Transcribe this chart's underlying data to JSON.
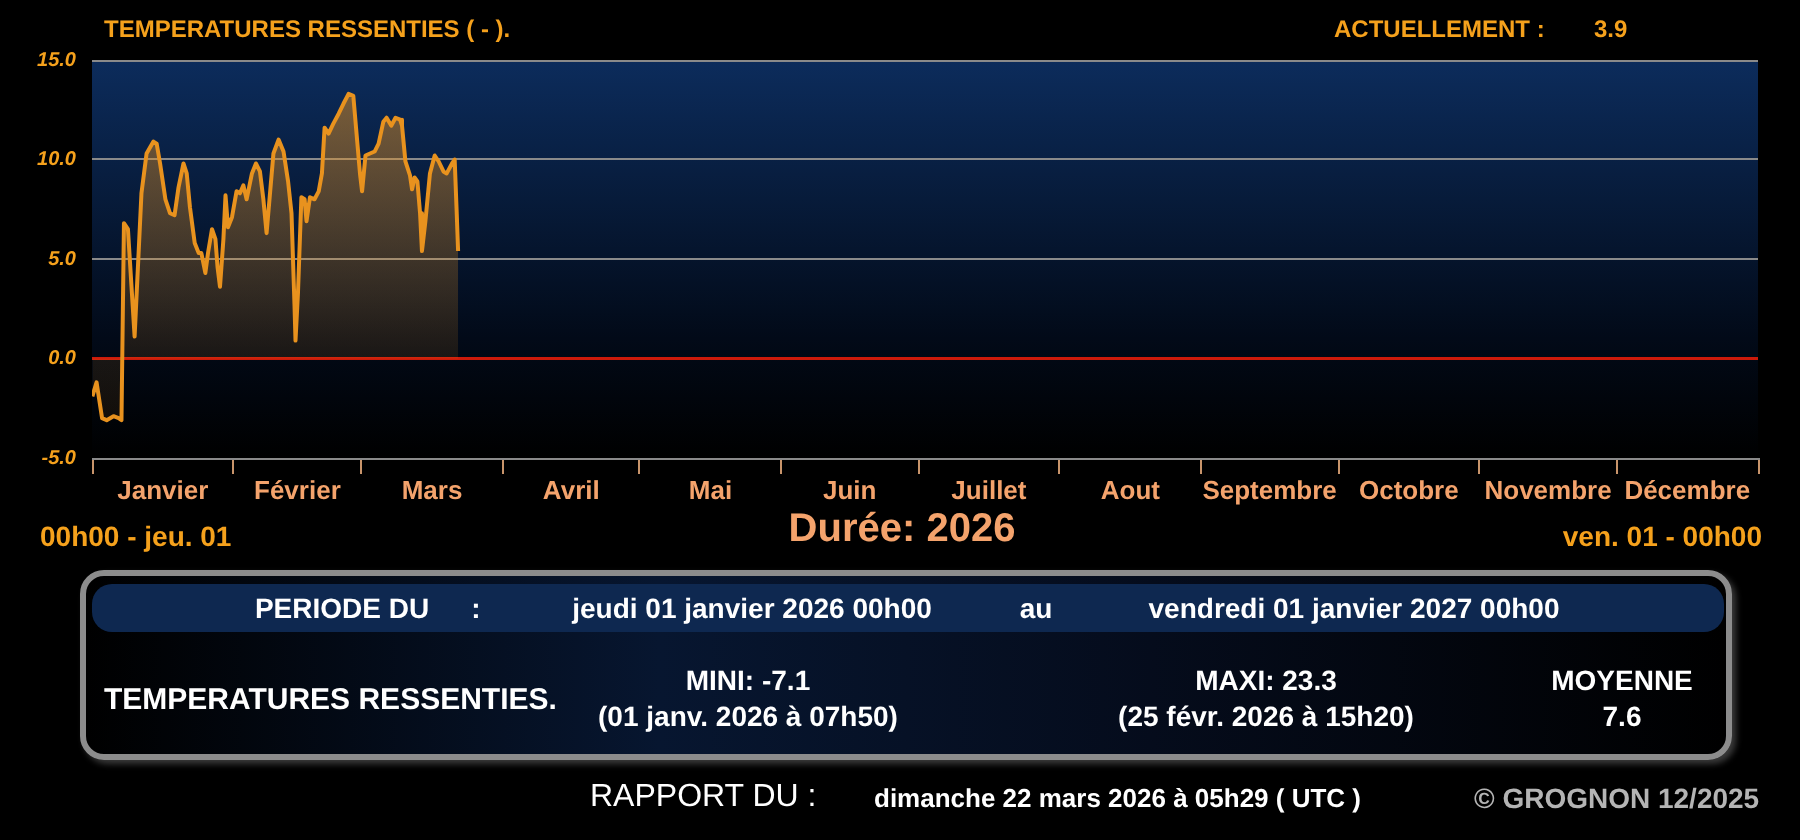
{
  "chart_data": {
    "type": "area",
    "title": "TEMPERATURES RESSENTIES ( - ).",
    "x": [
      "2026-01-01T02:00",
      "2026-01-02T00:00",
      "2026-01-03T05:00",
      "2026-01-04T05:00",
      "2026-01-05T17:00",
      "2026-01-06T20:00",
      "2026-01-07T11:00",
      "2026-01-08T00:00",
      "2026-01-08T21:00",
      "2026-01-10T08:00",
      "2026-01-11T20:00",
      "2026-01-12T23:00",
      "2026-01-14T11:00",
      "2026-01-15T04:00",
      "2026-01-15T22:00",
      "2026-01-17T02:00",
      "2026-01-18T02:00",
      "2026-01-19T02:00",
      "2026-01-19T23:00",
      "2026-01-21T01:00",
      "2026-01-21T18:00",
      "2026-01-22T11:00",
      "2026-01-23T12:00",
      "2026-01-24T09:00",
      "2026-01-24T23:00",
      "2026-01-25T20:00",
      "2026-01-26T10:00",
      "2026-01-27T07:00",
      "2026-01-28T01:00",
      "2026-01-28T12:00",
      "2026-01-29T01:00",
      "2026-01-29T19:00",
      "2026-01-30T06:00",
      "2026-01-30T19:00",
      "2026-01-31T16:00",
      "2026-02-01T16:00",
      "2026-02-02T10:00",
      "2026-02-03T04:00",
      "2026-02-03T21:00",
      "2026-02-05T01:00",
      "2026-02-05T22:00",
      "2026-02-06T19:00",
      "2026-02-07T13:00",
      "2026-02-08T06:00",
      "2026-02-09T18:00",
      "2026-02-10T21:00",
      "2026-02-11T23:00",
      "2026-02-12T23:00",
      "2026-02-13T17:00",
      "2026-02-14T09:00",
      "2026-02-14T14:00",
      "2026-02-15T03:00",
      "2026-02-15T21:00",
      "2026-02-16T14:00",
      "2026-02-17T00:00",
      "2026-02-17T18:00",
      "2026-02-18T18:00",
      "2026-02-19T16:00",
      "2026-02-20T09:00",
      "2026-02-20T23:00",
      "2026-02-21T20:00",
      "2026-02-22T21:00",
      "2026-02-24T01:00",
      "2026-02-25T02:00",
      "2026-02-26T05:00",
      "2026-02-27T06:00",
      "2026-02-27T23:00",
      "2026-02-28T17:00",
      "2026-03-01T04:00",
      "2026-03-01T22:00",
      "2026-03-02T22:00",
      "2026-03-03T22:00",
      "2026-03-04T19:00",
      "2026-03-05T20:00",
      "2026-03-06T13:00",
      "2026-03-07T14:00",
      "2026-03-08T12:00",
      "2026-03-09T12:00",
      "2026-03-09T22:00",
      "2026-03-10T16:00",
      "2026-03-11T16:00",
      "2026-03-12T03:00",
      "2026-03-12T16:00",
      "2026-03-13T07:00",
      "2026-03-13T21:00",
      "2026-03-14T07:00",
      "2026-03-15T01:00",
      "2026-03-16T01:00",
      "2026-03-17T02:00",
      "2026-03-17T23:00",
      "2026-03-19T00:00",
      "2026-03-19T17:00",
      "2026-03-20T21:00",
      "2026-03-21T11:00",
      "2026-03-21T21:00",
      "2026-03-22T05:00"
    ],
    "values": [
      -1.9,
      -1.2,
      -3.0,
      -3.1,
      -2.9,
      -3.0,
      -3.1,
      6.8,
      6.5,
      1.1,
      8.3,
      10.3,
      10.9,
      10.8,
      9.8,
      8.0,
      7.3,
      7.2,
      8.6,
      9.8,
      9.3,
      7.6,
      5.8,
      5.3,
      5.3,
      4.3,
      5.3,
      6.5,
      6.0,
      4.6,
      3.6,
      6.0,
      8.2,
      6.6,
      7.1,
      8.4,
      8.3,
      8.7,
      8.0,
      9.3,
      9.8,
      9.4,
      8.0,
      6.3,
      10.3,
      11.0,
      10.4,
      8.9,
      7.3,
      2.6,
      0.9,
      3.3,
      8.1,
      8.0,
      6.9,
      8.1,
      8.0,
      8.4,
      9.3,
      11.6,
      11.3,
      11.8,
      12.3,
      12.8,
      13.3,
      13.2,
      11.3,
      9.3,
      8.4,
      10.2,
      10.3,
      10.4,
      10.8,
      11.9,
      12.1,
      11.7,
      12.1,
      12.0,
      11.7,
      9.9,
      9.2,
      8.5,
      9.1,
      8.9,
      7.3,
      5.4,
      6.9,
      9.3,
      10.2,
      9.9,
      9.4,
      9.3,
      9.8,
      10.0,
      7.5,
      5.4
    ],
    "color": "#e8921e",
    "marker": "none",
    "xlim": [
      "2026-01-01",
      "2027-01-01"
    ],
    "xticks": [
      {
        "value": "2026-01-01",
        "label": null
      },
      {
        "value": "2026-01-16T12:00",
        "label": "Janvier"
      },
      {
        "value": "2026-02-01",
        "label": null
      },
      {
        "value": "2026-02-15",
        "label": "Février"
      },
      {
        "value": "2026-03-01",
        "label": null
      },
      {
        "value": "2026-03-16T12:00",
        "label": "Mars"
      },
      {
        "value": "2026-04-01",
        "label": null
      },
      {
        "value": "2026-04-16",
        "label": "Avril"
      },
      {
        "value": "2026-05-01",
        "label": null
      },
      {
        "value": "2026-05-16T12:00",
        "label": "Mai"
      },
      {
        "value": "2026-06-01",
        "label": null
      },
      {
        "value": "2026-06-16",
        "label": "Juin"
      },
      {
        "value": "2026-07-01",
        "label": null
      },
      {
        "value": "2026-07-16T12:00",
        "label": "Juillet"
      },
      {
        "value": "2026-08-01",
        "label": null
      },
      {
        "value": "2026-08-16T12:00",
        "label": "Aout"
      },
      {
        "value": "2026-09-01",
        "label": null
      },
      {
        "value": "2026-09-16",
        "label": "Septembre"
      },
      {
        "value": "2026-10-01",
        "label": null
      },
      {
        "value": "2026-10-16T12:00",
        "label": "Octobre"
      },
      {
        "value": "2026-11-01",
        "label": null
      },
      {
        "value": "2026-11-16",
        "label": "Novembre"
      },
      {
        "value": "2026-12-01",
        "label": null
      },
      {
        "value": "2026-12-16T12:00",
        "label": "Décembre"
      },
      {
        "value": "2027-01-01",
        "label": null
      }
    ],
    "ylim": [
      -5,
      15
    ],
    "yticks": [
      {
        "value": -5,
        "label": "-5.0"
      },
      {
        "value": 0,
        "label": "0.0"
      },
      {
        "value": 5,
        "label": "5.0"
      },
      {
        "value": 10,
        "label": "10.0"
      },
      {
        "value": 15,
        "label": "15.0"
      }
    ],
    "grid": "y",
    "ref_lines": [
      {
        "axis": "y",
        "value": 0,
        "color": "#cc1a0a"
      }
    ],
    "annotations": [
      "ACTUELLEMENT :",
      "3.9",
      "00h00 - jeu. 01",
      "Durée: 2026",
      "ven. 01 - 00h00",
      "PERIODE DU",
      ":",
      "jeudi 01 janvier 2026 00h00",
      "au",
      "vendredi 01 janvier 2027 00h00",
      "TEMPERATURES RESSENTIES.",
      "MINI: -7.1",
      "(01 janv. 2026 à 07h50)",
      "MAXI: 23.3",
      "(25 févr. 2026 à 15h20)",
      "MOYENNE",
      "7.6",
      "RAPPORT DU :",
      "dimanche 22 mars 2026 à 05h29 ( UTC )",
      "© GROGNON 12/2025"
    ]
  }
}
